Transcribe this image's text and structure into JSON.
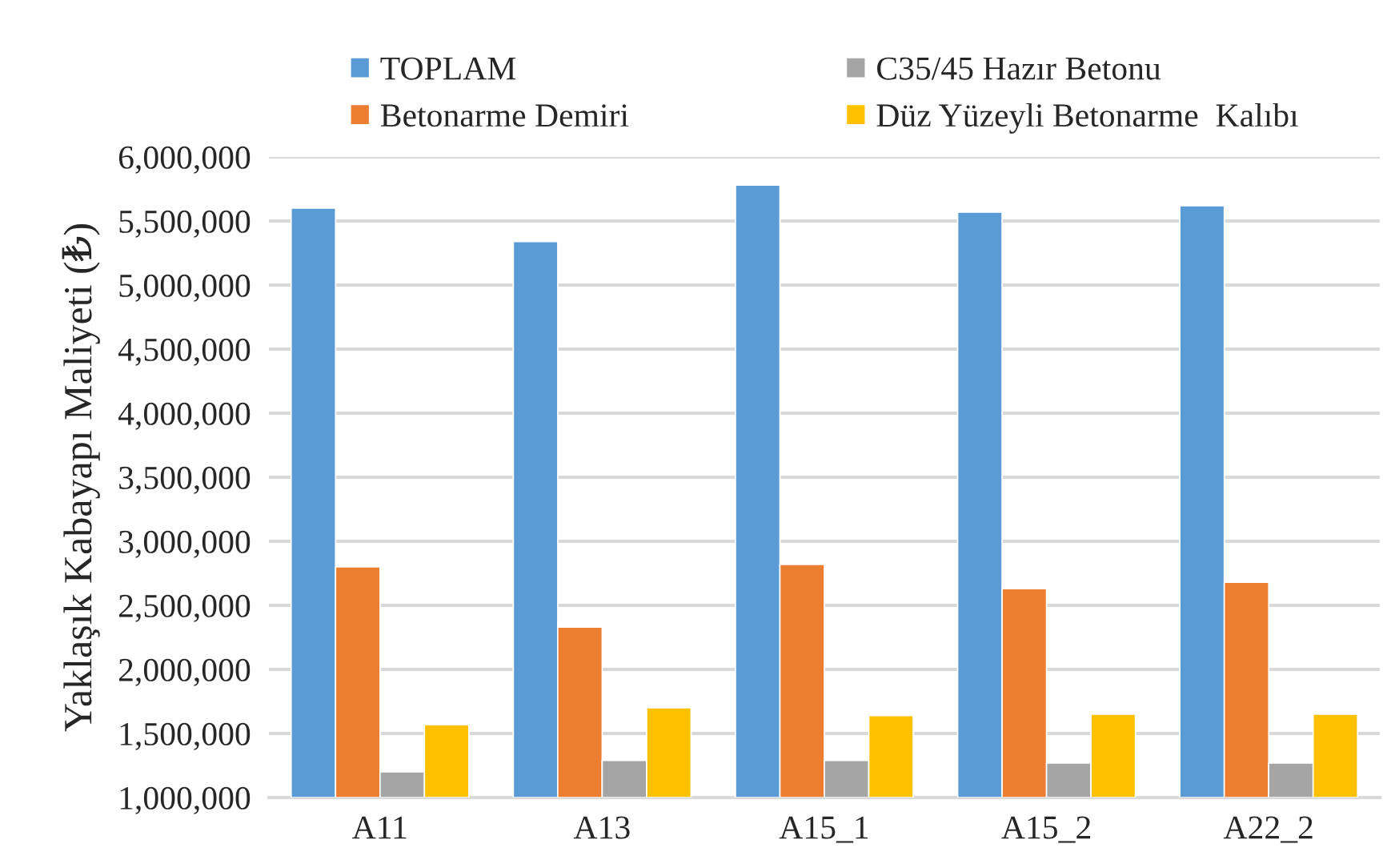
{
  "chart_data": {
    "type": "bar",
    "ylabel": "Yaklaşık Kabayapı Maliyeti (₺)",
    "categories": [
      "A11",
      "A13",
      "A15_1",
      "A15_2",
      "A22_2"
    ],
    "series": [
      {
        "name": "TOPLAM",
        "color": "#5b9bd5",
        "values": [
          5600000,
          5340000,
          5780000,
          5570000,
          5620000
        ]
      },
      {
        "name": "Betonarme Demiri",
        "color": "#ed7d31",
        "values": [
          2800000,
          2330000,
          2820000,
          2630000,
          2680000
        ]
      },
      {
        "name": "C35/45 Hazır Betonu",
        "color": "#a5a5a5",
        "values": [
          1200000,
          1290000,
          1290000,
          1270000,
          1270000
        ]
      },
      {
        "name": "Düz Yüzeyli Betonarme  Kalıbı",
        "color": "#ffc000",
        "values": [
          1570000,
          1700000,
          1640000,
          1650000,
          1650000
        ]
      }
    ],
    "ylim": [
      1000000,
      6000000
    ],
    "yticks": [
      {
        "value": 1000000,
        "label": "1,000,000"
      },
      {
        "value": 1500000,
        "label": "1,500,000"
      },
      {
        "value": 2000000,
        "label": "2,000,000"
      },
      {
        "value": 2500000,
        "label": "2,500,000"
      },
      {
        "value": 3000000,
        "label": "3,000,000"
      },
      {
        "value": 3500000,
        "label": "3,500,000"
      },
      {
        "value": 4000000,
        "label": "4,000,000"
      },
      {
        "value": 4500000,
        "label": "4,500,000"
      },
      {
        "value": 5000000,
        "label": "5,000,000"
      },
      {
        "value": 5500000,
        "label": "5,500,000"
      },
      {
        "value": 6000000,
        "label": "6,000,000"
      }
    ],
    "grid": "y",
    "legend": "top"
  }
}
